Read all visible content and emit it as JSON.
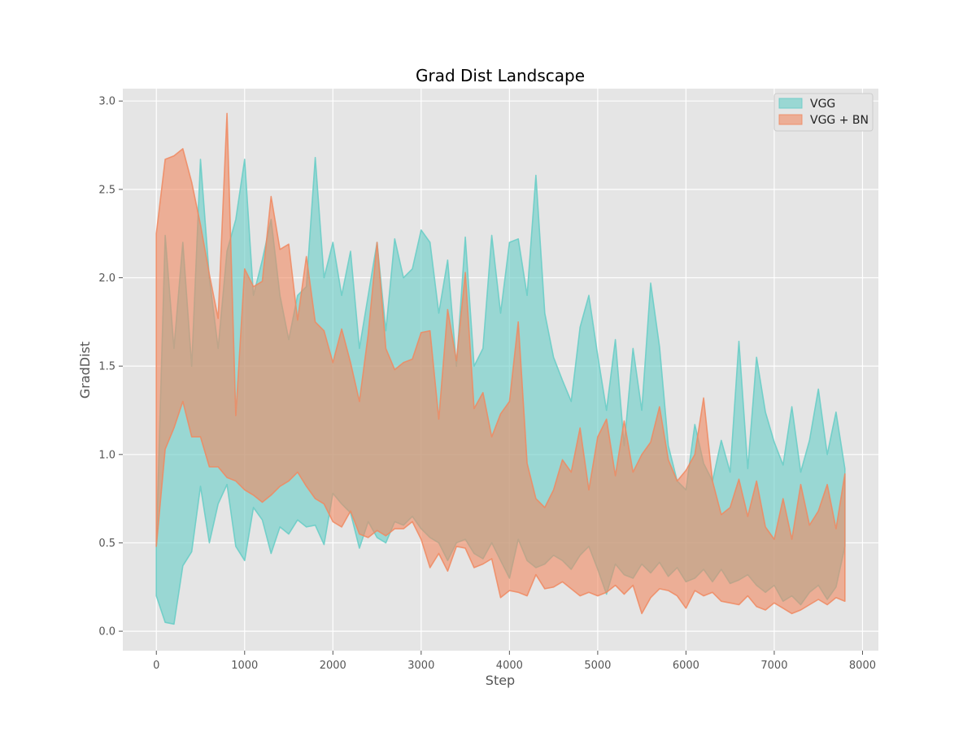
{
  "chart_data": {
    "type": "area",
    "title": "Grad Dist Landscape",
    "xlabel": "Step",
    "ylabel": "GradDist",
    "xlim": [
      -380,
      8180
    ],
    "ylim": [
      -0.11,
      3.07
    ],
    "xticks": [
      0,
      1000,
      2000,
      3000,
      4000,
      5000,
      6000,
      7000,
      8000
    ],
    "yticks": [
      0.0,
      0.5,
      1.0,
      1.5,
      2.0,
      2.5,
      3.0
    ],
    "xtick_labels": [
      "0",
      "1000",
      "2000",
      "3000",
      "4000",
      "5000",
      "6000",
      "7000",
      "8000"
    ],
    "ytick_labels": [
      "0.0",
      "0.5",
      "1.0",
      "1.5",
      "2.0",
      "2.5",
      "3.0"
    ],
    "grid": true,
    "legend_position": "top-right",
    "x": [
      0,
      100,
      200,
      300,
      400,
      500,
      600,
      700,
      800,
      900,
      1000,
      1100,
      1200,
      1300,
      1400,
      1500,
      1600,
      1700,
      1800,
      1900,
      2000,
      2100,
      2200,
      2300,
      2400,
      2500,
      2600,
      2700,
      2800,
      2900,
      3000,
      3100,
      3200,
      3300,
      3400,
      3500,
      3600,
      3700,
      3800,
      3900,
      4000,
      4100,
      4200,
      4300,
      4400,
      4500,
      4600,
      4700,
      4800,
      4900,
      5000,
      5100,
      5200,
      5300,
      5400,
      5500,
      5600,
      5700,
      5800,
      5900,
      6000,
      6100,
      6200,
      6300,
      6400,
      6500,
      6600,
      6700,
      6800,
      6900,
      7000,
      7100,
      7200,
      7300,
      7400,
      7500,
      7600,
      7700,
      7800
    ],
    "series": [
      {
        "name": "VGG",
        "color": "#66CDC6",
        "upper": [
          0.48,
          2.24,
          1.6,
          2.2,
          1.5,
          2.67,
          2.0,
          1.6,
          2.15,
          2.33,
          2.67,
          1.9,
          2.1,
          2.33,
          1.9,
          1.65,
          1.9,
          1.95,
          2.68,
          2.0,
          2.2,
          1.9,
          2.15,
          1.6,
          1.9,
          2.2,
          1.7,
          2.22,
          2.0,
          2.05,
          2.27,
          2.2,
          1.8,
          2.1,
          1.5,
          2.23,
          1.5,
          1.6,
          2.24,
          1.8,
          2.2,
          2.22,
          1.9,
          2.58,
          1.8,
          1.55,
          1.42,
          1.3,
          1.72,
          1.9,
          1.56,
          1.25,
          1.65,
          1.05,
          1.6,
          1.25,
          1.97,
          1.61,
          1.05,
          0.85,
          0.8,
          1.17,
          0.95,
          0.85,
          1.08,
          0.9,
          1.64,
          0.92,
          1.55,
          1.24,
          1.07,
          0.94,
          1.27,
          0.9,
          1.08,
          1.37,
          1.0,
          1.24,
          0.92
        ],
        "lower": [
          0.2,
          0.05,
          0.04,
          0.37,
          0.45,
          0.82,
          0.5,
          0.72,
          0.83,
          0.48,
          0.4,
          0.7,
          0.63,
          0.44,
          0.59,
          0.55,
          0.63,
          0.59,
          0.6,
          0.49,
          0.78,
          0.72,
          0.67,
          0.47,
          0.62,
          0.53,
          0.5,
          0.62,
          0.6,
          0.65,
          0.58,
          0.53,
          0.5,
          0.4,
          0.5,
          0.52,
          0.44,
          0.41,
          0.5,
          0.4,
          0.3,
          0.52,
          0.4,
          0.36,
          0.38,
          0.43,
          0.4,
          0.35,
          0.43,
          0.48,
          0.35,
          0.21,
          0.38,
          0.32,
          0.3,
          0.38,
          0.33,
          0.39,
          0.31,
          0.36,
          0.28,
          0.3,
          0.35,
          0.28,
          0.35,
          0.27,
          0.29,
          0.32,
          0.26,
          0.22,
          0.26,
          0.17,
          0.2,
          0.15,
          0.22,
          0.26,
          0.18,
          0.25,
          0.48
        ]
      },
      {
        "name": "VGG + BN",
        "color": "#F08860",
        "upper": [
          2.25,
          2.67,
          2.69,
          2.73,
          2.54,
          2.3,
          2.02,
          1.77,
          2.93,
          1.22,
          2.05,
          1.95,
          1.98,
          2.46,
          2.16,
          2.19,
          1.76,
          2.12,
          1.75,
          1.7,
          1.52,
          1.71,
          1.52,
          1.3,
          1.68,
          2.2,
          1.6,
          1.48,
          1.52,
          1.54,
          1.69,
          1.7,
          1.2,
          1.82,
          1.53,
          2.03,
          1.26,
          1.35,
          1.1,
          1.23,
          1.3,
          1.75,
          0.95,
          0.75,
          0.7,
          0.8,
          0.97,
          0.9,
          1.15,
          0.8,
          1.1,
          1.2,
          0.88,
          1.19,
          0.9,
          1.0,
          1.07,
          1.27,
          0.97,
          0.85,
          0.91,
          1.0,
          1.32,
          0.85,
          0.66,
          0.7,
          0.86,
          0.65,
          0.85,
          0.59,
          0.52,
          0.75,
          0.52,
          0.83,
          0.6,
          0.68,
          0.83,
          0.58,
          0.89
        ],
        "lower": [
          0.48,
          1.03,
          1.15,
          1.3,
          1.1,
          1.1,
          0.93,
          0.93,
          0.87,
          0.85,
          0.8,
          0.77,
          0.73,
          0.77,
          0.82,
          0.85,
          0.9,
          0.82,
          0.75,
          0.72,
          0.62,
          0.59,
          0.68,
          0.55,
          0.53,
          0.57,
          0.54,
          0.58,
          0.58,
          0.62,
          0.52,
          0.36,
          0.44,
          0.34,
          0.48,
          0.47,
          0.36,
          0.38,
          0.41,
          0.19,
          0.23,
          0.22,
          0.2,
          0.32,
          0.24,
          0.25,
          0.28,
          0.24,
          0.2,
          0.22,
          0.2,
          0.22,
          0.26,
          0.21,
          0.26,
          0.1,
          0.19,
          0.24,
          0.23,
          0.2,
          0.13,
          0.23,
          0.2,
          0.22,
          0.17,
          0.16,
          0.15,
          0.2,
          0.14,
          0.12,
          0.16,
          0.13,
          0.1,
          0.12,
          0.15,
          0.18,
          0.15,
          0.19,
          0.17
        ]
      }
    ]
  }
}
